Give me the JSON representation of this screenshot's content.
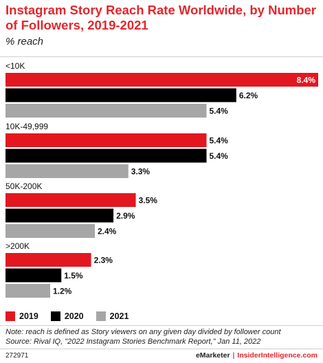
{
  "header": {
    "title": "Instagram Story Reach Rate Worldwide, by Number of Followers, 2019-2021",
    "subtitle": "% reach"
  },
  "colors": {
    "2019": "#e3171f",
    "2020": "#000000",
    "2021": "#a6a6a6",
    "title": "#e3262c"
  },
  "chart_data": {
    "type": "bar",
    "orientation": "horizontal",
    "categories": [
      "<10K",
      "10K-49,999",
      "50K-200K",
      ">200K"
    ],
    "series": [
      {
        "name": "2019",
        "values": [
          8.4,
          5.4,
          3.5,
          2.3
        ],
        "labels": [
          "8.4%",
          "5.4%",
          "3.5%",
          "2.3%"
        ]
      },
      {
        "name": "2020",
        "values": [
          6.2,
          5.4,
          2.9,
          1.5
        ],
        "labels": [
          "6.2%",
          "5.4%",
          "2.9%",
          "1.5%"
        ]
      },
      {
        "name": "2021",
        "values": [
          5.4,
          3.3,
          2.4,
          1.2
        ],
        "labels": [
          "5.4%",
          "3.3%",
          "2.4%",
          "1.2%"
        ]
      }
    ],
    "xlim": [
      0,
      8.4
    ],
    "grid": false,
    "legend": "bottom-left"
  },
  "legend": [
    {
      "label": "2019"
    },
    {
      "label": "2020"
    },
    {
      "label": "2021"
    }
  ],
  "note": "Note: reach is defined as Story viewers on any given day divided by follower count",
  "source": "Source: Rival IQ, \"2022 Instagram Stories Benchmark Report,\" Jan 11, 2022",
  "footer": {
    "id": "272971",
    "brand": "eMarketer",
    "separator": "|",
    "brand2": "InsiderIntelligence.com"
  }
}
